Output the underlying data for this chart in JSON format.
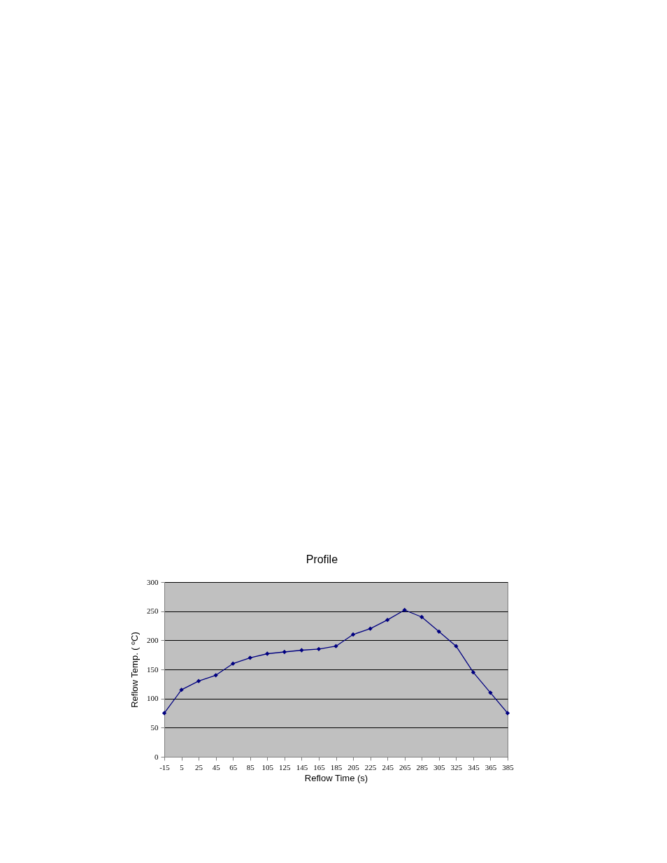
{
  "chart_data": {
    "type": "line",
    "title": "Profile",
    "xlabel": "Reflow Time (s)",
    "ylabel": "Reflow Temp. ( ºC)",
    "x": [
      -15,
      5,
      25,
      45,
      65,
      85,
      105,
      125,
      145,
      165,
      185,
      205,
      225,
      245,
      265,
      285,
      305,
      325,
      345,
      365,
      385
    ],
    "series": [
      {
        "color": "#000080",
        "values": [
          75,
          115,
          130,
          140,
          160,
          170,
          177,
          180,
          183,
          185,
          190,
          210,
          220,
          235,
          252,
          240,
          215,
          190,
          145,
          110,
          75
        ]
      }
    ],
    "xlim": [
      -15,
      385
    ],
    "xticks": [
      -15,
      5,
      25,
      45,
      65,
      85,
      105,
      125,
      145,
      165,
      185,
      205,
      225,
      245,
      265,
      285,
      305,
      325,
      345,
      365,
      385
    ],
    "ylim": [
      0,
      300
    ],
    "yticks": [
      0,
      50,
      100,
      150,
      200,
      250,
      300
    ],
    "grid": "y",
    "marker": "diamond",
    "line_style": "solid"
  }
}
